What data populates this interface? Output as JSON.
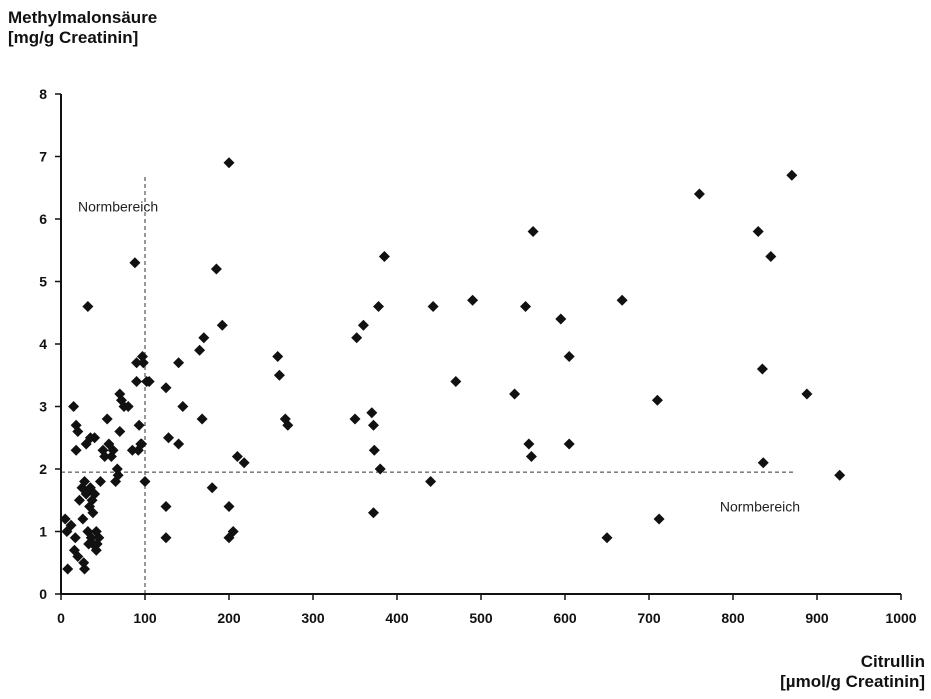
{
  "chart_data": {
    "type": "scatter",
    "ylabel_line1": "Methylmalonsäure",
    "ylabel_line2": "[mg/g Creatinin]",
    "xlabel_line1": "Citrullin",
    "xlabel_line2": "[µmol/g Creatinin]",
    "xlim": [
      0,
      1000
    ],
    "ylim": [
      0,
      8
    ],
    "xticks": [
      0,
      100,
      200,
      300,
      400,
      500,
      600,
      700,
      800,
      900,
      1000
    ],
    "yticks": [
      0,
      1,
      2,
      3,
      4,
      5,
      6,
      7,
      8
    ],
    "grid": false,
    "marker": "diamond",
    "marker_color": "#111111",
    "reference_lines": [
      {
        "orientation": "vertical",
        "x": 100,
        "y_from": 0,
        "y_to": 6.7,
        "style": "dashed",
        "label": "Normbereich"
      },
      {
        "orientation": "horizontal",
        "y": 1.95,
        "x_from": 0,
        "x_to": 875,
        "style": "dashed",
        "label": "Normbereich"
      }
    ],
    "points": [
      [
        5,
        1.2
      ],
      [
        7,
        1.0
      ],
      [
        8,
        0.4
      ],
      [
        12,
        1.1
      ],
      [
        15,
        3.0
      ],
      [
        16,
        0.7
      ],
      [
        17,
        0.9
      ],
      [
        18,
        2.3
      ],
      [
        18,
        2.7
      ],
      [
        20,
        0.6
      ],
      [
        20,
        2.6
      ],
      [
        22,
        1.5
      ],
      [
        25,
        1.7
      ],
      [
        26,
        1.2
      ],
      [
        27,
        0.5
      ],
      [
        28,
        1.8
      ],
      [
        28,
        0.4
      ],
      [
        30,
        1.6
      ],
      [
        30,
        2.4
      ],
      [
        32,
        4.6
      ],
      [
        32,
        1.0
      ],
      [
        33,
        0.8
      ],
      [
        34,
        1.4
      ],
      [
        35,
        2.5
      ],
      [
        35,
        1.7
      ],
      [
        36,
        0.9
      ],
      [
        37,
        1.5
      ],
      [
        38,
        1.3
      ],
      [
        38,
        0.8
      ],
      [
        40,
        2.5
      ],
      [
        40,
        1.6
      ],
      [
        42,
        1.0
      ],
      [
        42,
        0.7
      ],
      [
        43,
        0.8
      ],
      [
        45,
        0.9
      ],
      [
        47,
        1.8
      ],
      [
        50,
        2.3
      ],
      [
        52,
        2.2
      ],
      [
        55,
        2.8
      ],
      [
        57,
        2.4
      ],
      [
        60,
        2.2
      ],
      [
        62,
        2.3
      ],
      [
        65,
        1.8
      ],
      [
        67,
        2.0
      ],
      [
        68,
        1.9
      ],
      [
        70,
        3.2
      ],
      [
        70,
        2.6
      ],
      [
        72,
        3.1
      ],
      [
        75,
        3.0
      ],
      [
        80,
        3.0
      ],
      [
        85,
        2.3
      ],
      [
        88,
        5.3
      ],
      [
        90,
        3.7
      ],
      [
        90,
        3.4
      ],
      [
        92,
        2.3
      ],
      [
        93,
        2.7
      ],
      [
        95,
        2.4
      ],
      [
        96,
        2.4
      ],
      [
        97,
        3.8
      ],
      [
        98,
        3.7
      ],
      [
        100,
        1.8
      ],
      [
        102,
        3.4
      ],
      [
        105,
        3.4
      ],
      [
        125,
        3.3
      ],
      [
        125,
        1.4
      ],
      [
        125,
        0.9
      ],
      [
        128,
        2.5
      ],
      [
        140,
        3.7
      ],
      [
        140,
        2.4
      ],
      [
        145,
        3.0
      ],
      [
        165,
        3.9
      ],
      [
        168,
        2.8
      ],
      [
        170,
        4.1
      ],
      [
        180,
        1.7
      ],
      [
        185,
        5.2
      ],
      [
        192,
        4.3
      ],
      [
        200,
        1.4
      ],
      [
        200,
        0.9
      ],
      [
        200,
        6.9
      ],
      [
        205,
        1.0
      ],
      [
        210,
        2.2
      ],
      [
        218,
        2.1
      ],
      [
        258,
        3.8
      ],
      [
        260,
        3.5
      ],
      [
        267,
        2.8
      ],
      [
        270,
        2.7
      ],
      [
        350,
        2.8
      ],
      [
        352,
        4.1
      ],
      [
        360,
        4.3
      ],
      [
        370,
        2.9
      ],
      [
        372,
        2.7
      ],
      [
        372,
        1.3
      ],
      [
        373,
        2.3
      ],
      [
        378,
        4.6
      ],
      [
        380,
        2.0
      ],
      [
        385,
        5.4
      ],
      [
        440,
        1.8
      ],
      [
        443,
        4.6
      ],
      [
        470,
        3.4
      ],
      [
        490,
        4.7
      ],
      [
        540,
        3.2
      ],
      [
        553,
        4.6
      ],
      [
        557,
        2.4
      ],
      [
        560,
        2.2
      ],
      [
        562,
        5.8
      ],
      [
        595,
        4.4
      ],
      [
        605,
        3.8
      ],
      [
        605,
        2.4
      ],
      [
        650,
        0.9
      ],
      [
        668,
        4.7
      ],
      [
        710,
        3.1
      ],
      [
        712,
        1.2
      ],
      [
        760,
        6.4
      ],
      [
        830,
        5.8
      ],
      [
        835,
        3.6
      ],
      [
        836,
        2.1
      ],
      [
        845,
        5.4
      ],
      [
        870,
        6.7
      ],
      [
        888,
        3.2
      ],
      [
        927,
        1.9
      ]
    ]
  }
}
